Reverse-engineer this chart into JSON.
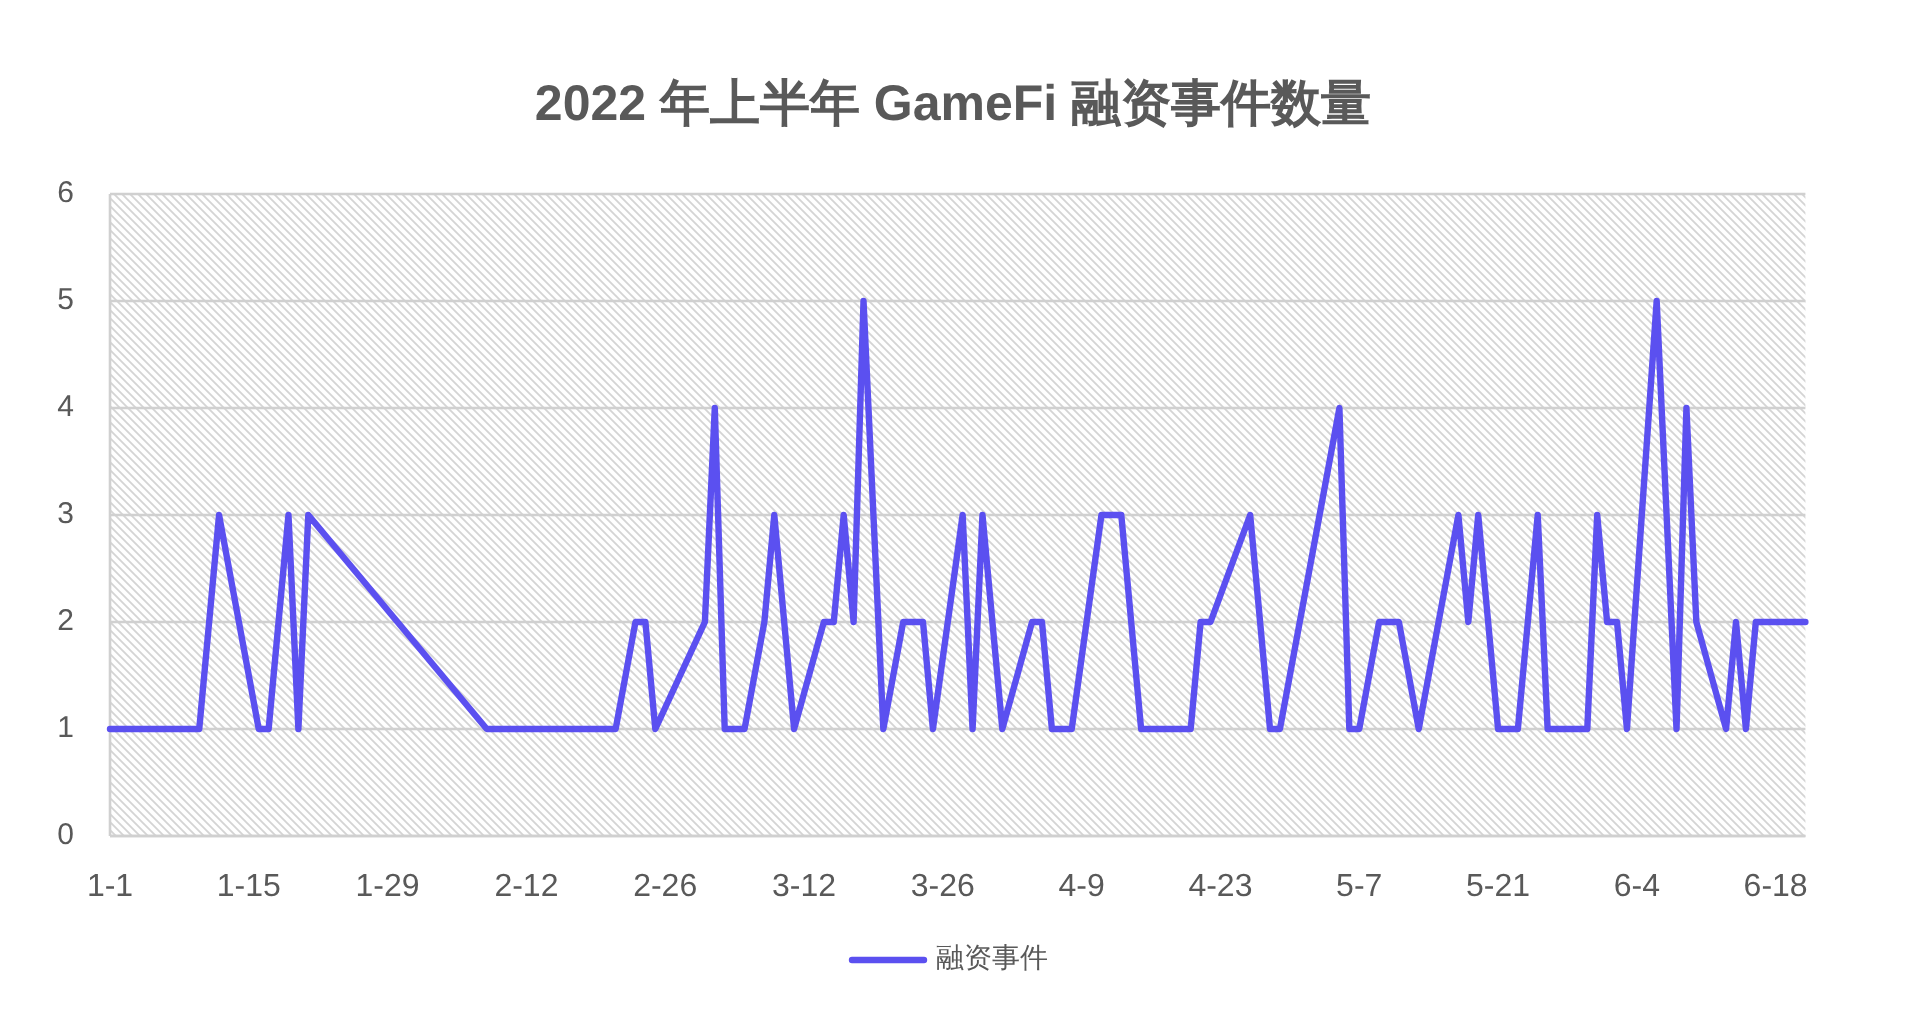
{
  "chart_data": {
    "type": "line",
    "title": "2022 年上半年 GameFi 融资事件数量",
    "x": [
      "--01-01",
      "--01-10",
      "--01-12",
      "--01-16",
      "--01-17",
      "--01-19",
      "--01-20",
      "--01-21",
      "--02-08",
      "--02-21",
      "--02-23",
      "--02-24",
      "--02-25",
      "--03-02",
      "--03-03",
      "--03-04",
      "--03-06",
      "--03-08",
      "--03-09",
      "--03-11",
      "--03-14",
      "--03-15",
      "--03-16",
      "--03-17",
      "--03-18",
      "--03-20",
      "--03-22",
      "--03-24",
      "--03-25",
      "--03-28",
      "--03-29",
      "--03-30",
      "--04-01",
      "--04-04",
      "--04-05",
      "--04-06",
      "--04-08",
      "--04-11",
      "--04-13",
      "--04-15",
      "--04-20",
      "--04-21",
      "--04-22",
      "--04-26",
      "--04-28",
      "--04-29",
      "--05-05",
      "--05-06",
      "--05-07",
      "--05-09",
      "--05-11",
      "--05-13",
      "--05-17",
      "--05-18",
      "--05-19",
      "--05-21",
      "--05-23",
      "--05-25",
      "--05-26",
      "--05-30",
      "--05-31",
      "--06-01",
      "--06-02",
      "--06-03",
      "--06-06",
      "--06-08",
      "--06-09",
      "--06-10",
      "--06-13",
      "--06-14",
      "--06-15",
      "--06-16",
      "--06-21"
    ],
    "series": [
      {
        "name": "融资事件",
        "color": "#5b50f0",
        "values": [
          1,
          1,
          3,
          1,
          1,
          3,
          1,
          3,
          1,
          1,
          2,
          2,
          1,
          2,
          4,
          1,
          1,
          2,
          3,
          1,
          2,
          2,
          3,
          2,
          5,
          1,
          2,
          2,
          1,
          3,
          1,
          3,
          1,
          2,
          2,
          1,
          1,
          3,
          3,
          1,
          1,
          2,
          2,
          3,
          1,
          1,
          4,
          1,
          1,
          2,
          2,
          1,
          3,
          2,
          3,
          1,
          1,
          3,
          1,
          1,
          3,
          2,
          2,
          1,
          5,
          1,
          4,
          2,
          1,
          2,
          1,
          2,
          2
        ]
      }
    ],
    "xlim": [
      "--01-01",
      "--06-21"
    ],
    "xticks": [
      {
        "value": "--01-01",
        "label": "1-1"
      },
      {
        "value": "--01-15",
        "label": "1-15"
      },
      {
        "value": "--01-29",
        "label": "1-29"
      },
      {
        "value": "--02-12",
        "label": "2-12"
      },
      {
        "value": "--02-26",
        "label": "2-26"
      },
      {
        "value": "--03-12",
        "label": "3-12"
      },
      {
        "value": "--03-26",
        "label": "3-26"
      },
      {
        "value": "--04-09",
        "label": "4-9"
      },
      {
        "value": "--04-23",
        "label": "4-23"
      },
      {
        "value": "--05-07",
        "label": "5-7"
      },
      {
        "value": "--05-21",
        "label": "5-21"
      },
      {
        "value": "--06-04",
        "label": "6-4"
      },
      {
        "value": "--06-18",
        "label": "6-18"
      }
    ],
    "ylim": [
      0,
      6
    ],
    "yticks": [
      0,
      1,
      2,
      3,
      4,
      5,
      6
    ],
    "grid": "y",
    "legend": "bottom"
  }
}
